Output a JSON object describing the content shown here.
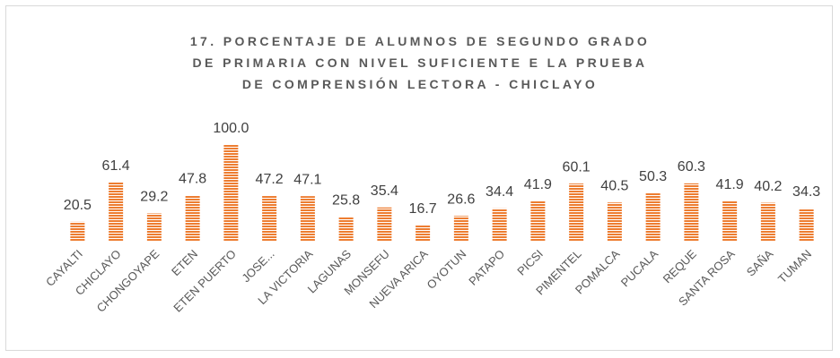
{
  "chart_data": {
    "type": "bar",
    "title": "17. PORCENTAJE DE ALUMNOS DE SEGUNDO GRADO DE PRIMARIA CON NIVEL SUFICIENTE E LA PRUEBA DE COMPRENSIÓN LECTORA - CHICLAYO",
    "categories": [
      "CAYALTI",
      "CHICLAYO",
      "CHONGOYAPE",
      "ETEN",
      "ETEN PUERTO",
      "JOSE...",
      "LA VICTORIA",
      "LAGUNAS",
      "MONSEFU",
      "NUEVA ARICA",
      "OYOTUN",
      "PATAPO",
      "PICSI",
      "PIMENTEL",
      "POMALCA",
      "PUCALA",
      "REQUE",
      "SANTA ROSA",
      "SAÑA",
      "TUMAN"
    ],
    "values": [
      20.5,
      61.4,
      29.2,
      47.8,
      100.0,
      47.2,
      47.1,
      25.8,
      35.4,
      16.7,
      26.6,
      34.4,
      41.9,
      60.1,
      40.5,
      50.3,
      60.3,
      41.9,
      40.2,
      34.3
    ],
    "value_labels": [
      "20.5",
      "61.4",
      "29.2",
      "47.8",
      "100.0",
      "47.2",
      "47.1",
      "25.8",
      "35.4",
      "16.7",
      "26.6",
      "34.4",
      "41.9",
      "60.1",
      "40.5",
      "50.3",
      "60.3",
      "41.9",
      "40.2",
      "34.3"
    ],
    "color": "#ed7d31"
  }
}
